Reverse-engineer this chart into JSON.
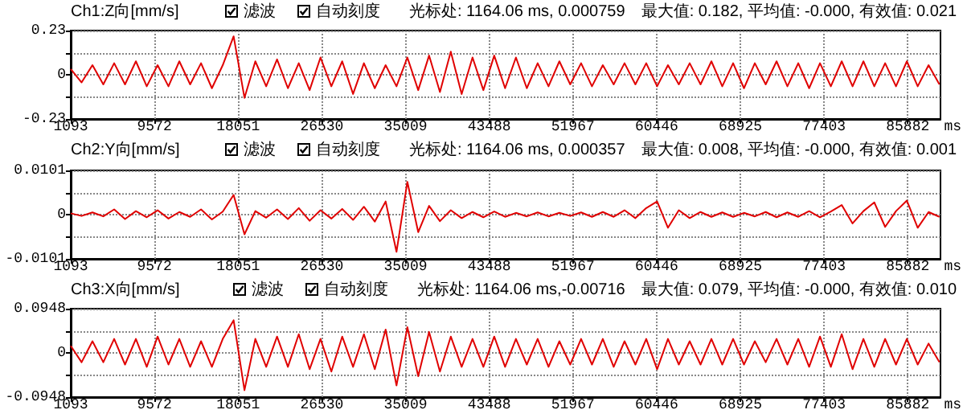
{
  "chart_data": [
    {
      "type": "line",
      "title": "Ch1:Z向[mm/s]",
      "annotations": [
        "滤波",
        "自动刻度",
        "光标处: 1164.06 ms, 0.000759",
        "最大值: 0.182, 平均值: -0.000, 有效值: 0.021"
      ],
      "x": [
        1093,
        2193,
        3293,
        4393,
        5493,
        6593,
        7693,
        8793,
        9893,
        10993,
        12093,
        13193,
        14293,
        15393,
        16493,
        17593,
        18693,
        19793,
        20893,
        21993,
        23093,
        24193,
        25293,
        26393,
        27493,
        28593,
        29693,
        30793,
        31893,
        32993,
        34093,
        35193,
        36293,
        37393,
        38493,
        39593,
        40693,
        41793,
        42893,
        43993,
        45093,
        46193,
        47293,
        48393,
        49493,
        50593,
        51693,
        52793,
        53893,
        54993,
        56093,
        57193,
        58293,
        59393,
        60493,
        61593,
        62693,
        63793,
        64893,
        65993,
        67093,
        68193,
        69293,
        70393,
        71493,
        72593,
        73693,
        74793,
        75893,
        76993,
        78093,
        79193,
        80293,
        81393,
        82493,
        83593,
        84693,
        85793,
        86893,
        87993,
        89093
      ],
      "values": [
        0.03,
        -0.04,
        0.05,
        -0.05,
        0.06,
        -0.05,
        0.07,
        -0.06,
        0.05,
        -0.06,
        0.07,
        -0.05,
        0.06,
        -0.07,
        0.05,
        0.2,
        -0.12,
        0.07,
        -0.06,
        0.08,
        -0.07,
        0.06,
        -0.08,
        0.09,
        -0.06,
        0.07,
        -0.1,
        0.06,
        -0.07,
        0.05,
        -0.06,
        0.09,
        -0.08,
        0.1,
        -0.09,
        0.12,
        -0.1,
        0.09,
        -0.08,
        0.1,
        -0.07,
        0.09,
        -0.07,
        0.06,
        -0.06,
        0.07,
        -0.05,
        0.06,
        -0.06,
        0.05,
        -0.05,
        0.06,
        -0.05,
        0.06,
        -0.06,
        0.05,
        -0.05,
        0.06,
        -0.05,
        0.07,
        -0.06,
        0.06,
        -0.07,
        0.06,
        -0.05,
        0.07,
        -0.06,
        0.06,
        -0.07,
        0.06,
        -0.06,
        0.07,
        -0.06,
        0.07,
        -0.06,
        0.06,
        -0.06,
        0.07,
        -0.06,
        0.05,
        -0.05
      ],
      "color": "#e00000",
      "marker": "none",
      "grid": true,
      "xlabel": "ms",
      "xlim": [
        1093,
        89200
      ],
      "xticks": [
        1093,
        9572,
        18051,
        26530,
        35009,
        43488,
        51967,
        60446,
        68925,
        77403,
        85882
      ],
      "ylim": [
        -0.23,
        0.23
      ],
      "yticks": [
        -0.23,
        {
          "value": -0.115,
          "label": null
        },
        0,
        {
          "value": 0.115,
          "label": null
        },
        0.23
      ]
    },
    {
      "type": "line",
      "title": "Ch2:Y向[mm/s]",
      "annotations": [
        "滤波",
        "自动刻度",
        "光标处: 1164.06 ms, 0.000357",
        "最大值: 0.008, 平均值: -0.000, 有效值: 0.001"
      ],
      "x": [
        1093,
        2193,
        3293,
        4393,
        5493,
        6593,
        7693,
        8793,
        9893,
        10993,
        12093,
        13193,
        14293,
        15393,
        16493,
        17593,
        18693,
        19793,
        20893,
        21993,
        23093,
        24193,
        25293,
        26393,
        27493,
        28593,
        29693,
        30793,
        31893,
        32993,
        34093,
        35193,
        36293,
        37393,
        38493,
        39593,
        40693,
        41793,
        42893,
        43993,
        45093,
        46193,
        47293,
        48393,
        49493,
        50593,
        51693,
        52793,
        53893,
        54993,
        56093,
        57193,
        58293,
        59393,
        60493,
        61593,
        62693,
        63793,
        64893,
        65993,
        67093,
        68193,
        69293,
        70393,
        71493,
        72593,
        73693,
        74793,
        75893,
        76993,
        78093,
        79193,
        80293,
        81393,
        82493,
        83593,
        84693,
        85793,
        86893,
        87993,
        89093
      ],
      "values": [
        0.0003,
        -0.0003,
        0.0005,
        -0.0004,
        0.0012,
        -0.001,
        0.0008,
        -0.0006,
        0.001,
        -0.0009,
        0.0006,
        -0.0005,
        0.0012,
        -0.0011,
        0.0007,
        0.0045,
        -0.0045,
        0.0008,
        -0.0007,
        0.0012,
        -0.001,
        0.0015,
        -0.0014,
        0.001,
        -0.0009,
        0.0013,
        -0.0012,
        0.0018,
        -0.0016,
        0.003,
        -0.0085,
        0.0075,
        -0.004,
        0.002,
        -0.0015,
        0.001,
        -0.0008,
        0.0006,
        -0.0006,
        0.0007,
        -0.0005,
        0.0004,
        -0.0004,
        0.0005,
        -0.0004,
        0.0004,
        -0.0003,
        0.0005,
        -0.0005,
        0.0006,
        -0.0005,
        0.001,
        -0.0008,
        0.0015,
        0.003,
        -0.003,
        0.001,
        -0.0008,
        0.0006,
        -0.0005,
        0.0005,
        -0.0005,
        0.0004,
        -0.0004,
        0.0006,
        -0.0006,
        0.0005,
        -0.0005,
        0.0008,
        -0.0006,
        0.0007,
        0.0022,
        -0.002,
        0.0008,
        0.0028,
        -0.0028,
        0.0008,
        0.0032,
        -0.003,
        0.0006,
        -0.0005
      ],
      "color": "#e00000",
      "marker": "none",
      "grid": true,
      "xlabel": "ms",
      "xlim": [
        1093,
        89200
      ],
      "xticks": [
        1093,
        9572,
        18051,
        26530,
        35009,
        43488,
        51967,
        60446,
        68925,
        77403,
        85882
      ],
      "ylim": [
        -0.0101,
        0.0101
      ],
      "yticks": [
        -0.0101,
        {
          "value": -0.00505,
          "label": null
        },
        0,
        {
          "value": 0.00505,
          "label": null
        },
        0.0101
      ]
    },
    {
      "type": "line",
      "title": "Ch3:X向[mm/s]",
      "annotations": [
        "滤波",
        "自动刻度",
        "光标处: 1164.06 ms,-0.00716",
        "最大值: 0.079, 平均值: -0.000, 有效值: 0.010"
      ],
      "x": [
        1093,
        2193,
        3293,
        4393,
        5493,
        6593,
        7693,
        8793,
        9893,
        10993,
        12093,
        13193,
        14293,
        15393,
        16493,
        17593,
        18693,
        19793,
        20893,
        21993,
        23093,
        24193,
        25293,
        26393,
        27493,
        28593,
        29693,
        30793,
        31893,
        32993,
        34093,
        35193,
        36293,
        37393,
        38493,
        39593,
        40693,
        41793,
        42893,
        43993,
        45093,
        46193,
        47293,
        48393,
        49493,
        50593,
        51693,
        52793,
        53893,
        54993,
        56093,
        57193,
        58293,
        59393,
        60493,
        61593,
        62693,
        63793,
        64893,
        65993,
        67093,
        68193,
        69293,
        70393,
        71493,
        72593,
        73693,
        74793,
        75893,
        76993,
        78093,
        79193,
        80293,
        81393,
        82493,
        83593,
        84693,
        85793,
        86893,
        87993,
        89093
      ],
      "values": [
        0.015,
        -0.02,
        0.025,
        -0.02,
        0.03,
        -0.025,
        0.03,
        -0.03,
        0.035,
        -0.025,
        0.03,
        -0.03,
        0.025,
        -0.03,
        0.03,
        0.07,
        -0.08,
        0.03,
        -0.03,
        0.035,
        -0.03,
        0.04,
        -0.035,
        0.03,
        -0.04,
        0.035,
        -0.03,
        0.04,
        -0.035,
        0.05,
        -0.07,
        0.055,
        -0.05,
        0.045,
        -0.04,
        0.035,
        -0.03,
        0.03,
        -0.03,
        0.035,
        -0.03,
        0.03,
        -0.025,
        0.03,
        -0.03,
        0.025,
        -0.025,
        0.03,
        -0.025,
        0.03,
        -0.03,
        0.025,
        -0.025,
        0.03,
        -0.035,
        0.03,
        -0.025,
        0.025,
        -0.025,
        0.03,
        -0.025,
        0.03,
        -0.025,
        0.025,
        -0.02,
        0.03,
        -0.025,
        0.03,
        -0.03,
        0.035,
        -0.03,
        0.04,
        -0.035,
        0.03,
        -0.03,
        0.03,
        -0.025,
        0.03,
        -0.025,
        0.02,
        -0.02
      ],
      "color": "#e00000",
      "marker": "none",
      "grid": true,
      "xlabel": "ms",
      "xlim": [
        1093,
        89200
      ],
      "xticks": [
        1093,
        9572,
        18051,
        26530,
        35009,
        43488,
        51967,
        60446,
        68925,
        77403,
        85882
      ],
      "ylim": [
        -0.0948,
        0.0948
      ],
      "yticks": [
        -0.0948,
        {
          "value": -0.0474,
          "label": null
        },
        0,
        {
          "value": 0.0474,
          "label": null
        },
        0.0948
      ]
    }
  ]
}
